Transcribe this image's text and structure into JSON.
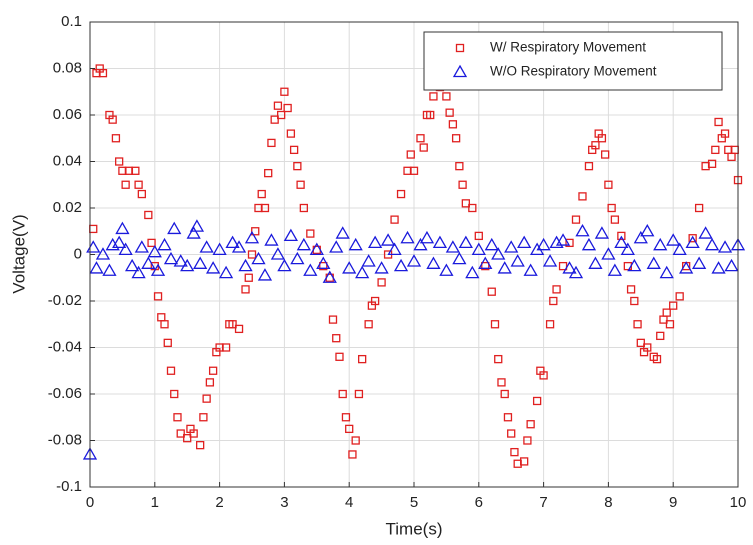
{
  "chart_data": {
    "type": "scatter",
    "xlabel": "Time(s)",
    "ylabel": "Voltage(V)",
    "xlim": [
      0,
      10
    ],
    "ylim": [
      -0.1,
      0.1
    ],
    "xticks": [
      0,
      1,
      2,
      3,
      4,
      5,
      6,
      7,
      8,
      9,
      10
    ],
    "yticks": [
      -0.1,
      -0.08,
      -0.06,
      -0.04,
      -0.02,
      0,
      0.02,
      0.04,
      0.06,
      0.08,
      0.1
    ],
    "grid": true,
    "legend": "upper right",
    "series": [
      {
        "name": "W/ Respiratory Movement",
        "color": "#e02020",
        "marker": "square",
        "x": [
          0.05,
          0.1,
          0.15,
          0.2,
          0.3,
          0.35,
          0.4,
          0.45,
          0.5,
          0.55,
          0.6,
          0.7,
          0.75,
          0.8,
          0.9,
          0.95,
          1.0,
          1.05,
          1.1,
          1.15,
          1.2,
          1.25,
          1.3,
          1.35,
          1.4,
          1.5,
          1.55,
          1.6,
          1.7,
          1.75,
          1.8,
          1.85,
          1.9,
          1.95,
          2.0,
          2.1,
          2.15,
          2.2,
          2.3,
          2.4,
          2.45,
          2.5,
          2.55,
          2.6,
          2.65,
          2.7,
          2.75,
          2.8,
          2.85,
          2.9,
          2.95,
          3.0,
          3.05,
          3.1,
          3.15,
          3.2,
          3.25,
          3.3,
          3.4,
          3.5,
          3.6,
          3.7,
          3.75,
          3.8,
          3.85,
          3.9,
          3.95,
          4.0,
          4.05,
          4.1,
          4.15,
          4.2,
          4.3,
          4.35,
          4.4,
          4.5,
          4.6,
          4.7,
          4.8,
          4.9,
          4.95,
          5.0,
          5.1,
          5.15,
          5.2,
          5.25,
          5.3,
          5.4,
          5.5,
          5.55,
          5.6,
          5.65,
          5.7,
          5.75,
          5.8,
          5.9,
          6.0,
          6.1,
          6.2,
          6.25,
          6.3,
          6.35,
          6.4,
          6.45,
          6.5,
          6.55,
          6.6,
          6.7,
          6.75,
          6.8,
          6.9,
          6.95,
          7.0,
          7.1,
          7.15,
          7.2,
          7.3,
          7.4,
          7.5,
          7.6,
          7.7,
          7.75,
          7.8,
          7.85,
          7.9,
          7.95,
          8.0,
          8.05,
          8.1,
          8.2,
          8.3,
          8.35,
          8.4,
          8.45,
          8.5,
          8.55,
          8.6,
          8.7,
          8.75,
          8.8,
          8.85,
          8.9,
          8.95,
          9.0,
          9.1,
          9.2,
          9.3,
          9.4,
          9.5,
          9.6,
          9.65,
          9.7,
          9.75,
          9.8,
          9.85,
          9.9,
          9.95,
          10.0
        ],
        "y": [
          0.011,
          0.078,
          0.08,
          0.078,
          0.06,
          0.058,
          0.05,
          0.04,
          0.036,
          0.03,
          0.036,
          0.036,
          0.03,
          0.026,
          0.017,
          0.005,
          -0.005,
          -0.018,
          -0.027,
          -0.03,
          -0.038,
          -0.05,
          -0.06,
          -0.07,
          -0.077,
          -0.079,
          -0.075,
          -0.077,
          -0.082,
          -0.07,
          -0.062,
          -0.055,
          -0.05,
          -0.042,
          -0.04,
          -0.04,
          -0.03,
          -0.03,
          -0.032,
          -0.015,
          -0.01,
          0.0,
          0.01,
          0.02,
          0.026,
          0.02,
          0.035,
          0.048,
          0.058,
          0.064,
          0.06,
          0.07,
          0.063,
          0.052,
          0.045,
          0.038,
          0.03,
          0.02,
          0.009,
          0.002,
          -0.005,
          -0.01,
          -0.028,
          -0.036,
          -0.044,
          -0.06,
          -0.07,
          -0.075,
          -0.086,
          -0.08,
          -0.06,
          -0.045,
          -0.03,
          -0.022,
          -0.02,
          -0.012,
          0.0,
          0.015,
          0.026,
          0.036,
          0.043,
          0.036,
          0.05,
          0.046,
          0.06,
          0.06,
          0.068,
          0.072,
          0.068,
          0.061,
          0.056,
          0.05,
          0.038,
          0.03,
          0.022,
          0.02,
          0.008,
          -0.005,
          -0.016,
          -0.03,
          -0.045,
          -0.055,
          -0.06,
          -0.07,
          -0.077,
          -0.085,
          -0.09,
          -0.089,
          -0.08,
          -0.073,
          -0.063,
          -0.05,
          -0.052,
          -0.03,
          -0.02,
          -0.015,
          -0.005,
          0.005,
          0.015,
          0.025,
          0.038,
          0.045,
          0.047,
          0.052,
          0.05,
          0.043,
          0.03,
          0.02,
          0.015,
          0.008,
          -0.005,
          -0.015,
          -0.02,
          -0.03,
          -0.038,
          -0.042,
          -0.04,
          -0.044,
          -0.045,
          -0.035,
          -0.028,
          -0.025,
          -0.03,
          -0.022,
          -0.018,
          -0.005,
          0.007,
          0.02,
          0.038,
          0.039,
          0.045,
          0.057,
          0.05,
          0.052,
          0.045,
          0.042,
          0.045,
          0.032
        ]
      },
      {
        "name": "W/O Respiratory Movement",
        "color": "#1a1adc",
        "marker": "triangle",
        "x": [
          0.0,
          0.05,
          0.1,
          0.2,
          0.3,
          0.35,
          0.45,
          0.5,
          0.55,
          0.65,
          0.75,
          0.8,
          0.9,
          1.0,
          1.05,
          1.15,
          1.25,
          1.3,
          1.4,
          1.5,
          1.6,
          1.65,
          1.7,
          1.8,
          1.9,
          2.0,
          2.1,
          2.2,
          2.3,
          2.4,
          2.5,
          2.6,
          2.7,
          2.8,
          2.9,
          3.0,
          3.1,
          3.2,
          3.3,
          3.4,
          3.5,
          3.6,
          3.7,
          3.8,
          3.9,
          4.0,
          4.1,
          4.2,
          4.3,
          4.4,
          4.5,
          4.6,
          4.7,
          4.8,
          4.9,
          5.0,
          5.1,
          5.2,
          5.3,
          5.4,
          5.5,
          5.6,
          5.7,
          5.8,
          5.9,
          6.0,
          6.1,
          6.2,
          6.3,
          6.4,
          6.5,
          6.6,
          6.7,
          6.8,
          6.9,
          7.0,
          7.1,
          7.2,
          7.3,
          7.4,
          7.5,
          7.6,
          7.7,
          7.8,
          7.9,
          8.0,
          8.1,
          8.2,
          8.3,
          8.4,
          8.5,
          8.6,
          8.7,
          8.8,
          8.9,
          9.0,
          9.1,
          9.2,
          9.3,
          9.4,
          9.5,
          9.6,
          9.7,
          9.8,
          9.9,
          10.0
        ],
        "y": [
          -0.086,
          0.003,
          -0.006,
          0.0,
          -0.007,
          0.004,
          0.005,
          0.011,
          0.002,
          -0.005,
          -0.008,
          0.003,
          -0.004,
          0.001,
          -0.007,
          0.004,
          -0.002,
          0.011,
          -0.003,
          -0.005,
          0.009,
          0.012,
          -0.004,
          0.003,
          -0.006,
          0.002,
          -0.008,
          0.005,
          0.003,
          -0.005,
          0.007,
          -0.002,
          -0.009,
          0.006,
          0.0,
          -0.005,
          0.008,
          -0.002,
          0.004,
          -0.007,
          0.002,
          -0.004,
          -0.01,
          0.003,
          0.009,
          -0.006,
          0.004,
          -0.008,
          -0.003,
          0.005,
          -0.006,
          0.006,
          0.002,
          -0.005,
          0.007,
          -0.003,
          0.004,
          0.007,
          -0.004,
          0.005,
          -0.007,
          0.003,
          -0.002,
          0.005,
          -0.008,
          0.002,
          -0.004,
          0.004,
          0.0,
          -0.006,
          0.003,
          -0.003,
          0.005,
          -0.007,
          0.002,
          0.004,
          -0.003,
          0.005,
          0.006,
          -0.006,
          -0.008,
          0.01,
          0.004,
          -0.004,
          0.009,
          0.0,
          -0.007,
          0.005,
          0.002,
          -0.005,
          0.007,
          0.01,
          -0.004,
          0.004,
          -0.008,
          0.006,
          0.002,
          -0.006,
          0.005,
          -0.004,
          0.009,
          0.004,
          -0.006,
          0.003,
          -0.005,
          0.004
        ]
      }
    ]
  }
}
